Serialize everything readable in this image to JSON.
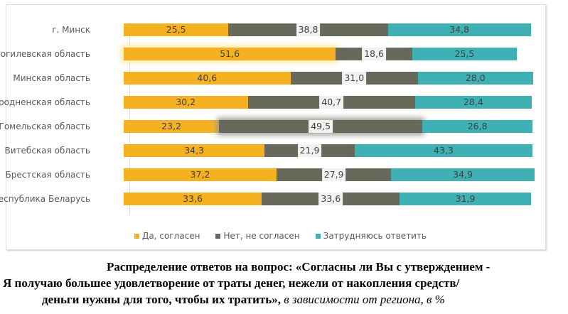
{
  "chart_data": {
    "type": "bar",
    "stacked": true,
    "orientation": "horizontal",
    "categories": [
      "г. Минск",
      "Могилевская область",
      "Минская область",
      "Гродненская область",
      "Гомельская область",
      "Витебская область",
      "Брестская область",
      "Республика Беларусь"
    ],
    "series": [
      {
        "name": "Да, согласен",
        "color": "#f5b122",
        "values": [
          25.5,
          51.6,
          40.6,
          30.2,
          23.2,
          34.3,
          37.2,
          33.6
        ],
        "labels": [
          "25,5",
          "51,6",
          "40,6",
          "30,2",
          "23,2",
          "34,3",
          "37,2",
          "33,6"
        ]
      },
      {
        "name": "Нет, не согласен",
        "color": "#68695a",
        "values": [
          38.8,
          18.6,
          31.0,
          40.7,
          49.5,
          21.9,
          27.9,
          33.6
        ],
        "labels": [
          "38,8",
          "18,6",
          "31,0",
          "40,7",
          "49,5",
          "21,9",
          "27,9",
          "33,6"
        ]
      },
      {
        "name": "Затрудняюсь ответить",
        "color": "#3fb0b4",
        "values": [
          34.8,
          25.5,
          28.0,
          28.4,
          26.8,
          43.3,
          34.9,
          31.9
        ],
        "labels": [
          "34,8",
          "25,5",
          "28,0",
          "28,4",
          "26,8",
          "43,3",
          "34,9",
          "31,9"
        ]
      }
    ],
    "xlim": [
      0,
      100
    ],
    "legend": "bottom"
  },
  "caption": {
    "line1": "Распределение ответов на вопрос: «Согласны ли Вы с утверждением -",
    "line2": "Я получаю большее удовлетворение от траты денег, нежели от накопления средств/",
    "line3": "деньги нужны для того, чтобы их тратить»,",
    "line3_italic": " в зависимости от региона, в %"
  }
}
